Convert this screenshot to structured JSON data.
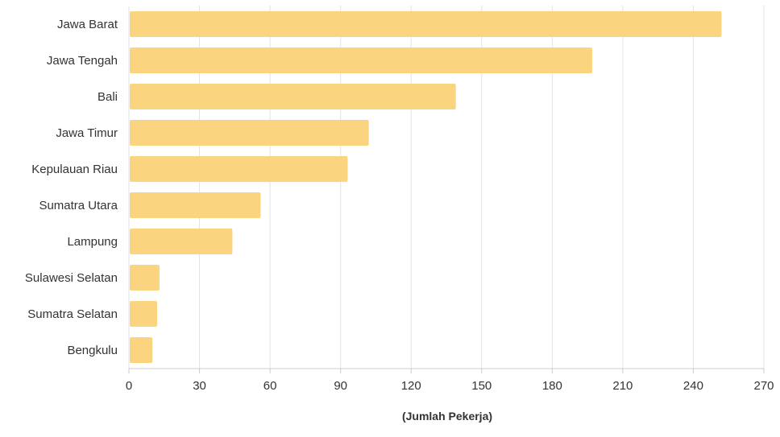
{
  "chart_data": {
    "type": "bar",
    "orientation": "horizontal",
    "categories": [
      "Jawa Barat",
      "Jawa Tengah",
      "Bali",
      "Jawa Timur",
      "Kepulauan Riau",
      "Sumatra Utara",
      "Lampung",
      "Sulawesi Selatan",
      "Sumatra Selatan",
      "Bengkulu"
    ],
    "values": [
      252,
      197,
      139,
      102,
      93,
      56,
      44,
      13,
      12,
      10
    ],
    "xlabel": "(Jumlah Pekerja)",
    "xlim": [
      0,
      270
    ],
    "xticks": [
      0,
      30,
      60,
      90,
      120,
      150,
      180,
      210,
      240,
      270
    ],
    "grid": "vertical",
    "bar_color": "#fbd47f"
  }
}
